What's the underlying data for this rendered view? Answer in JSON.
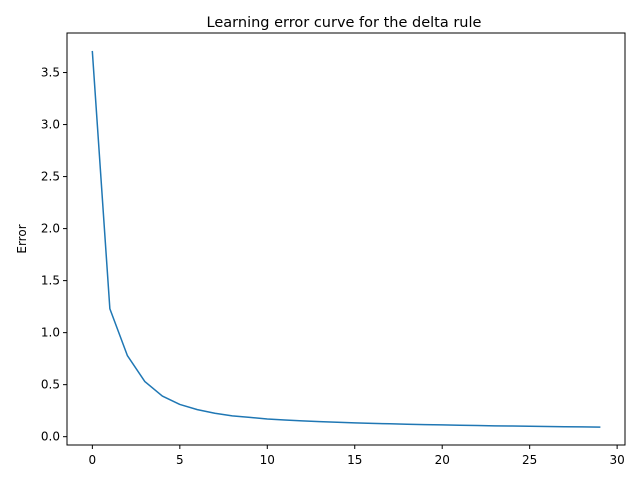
{
  "chart_data": {
    "type": "line",
    "title": "Learning error curve for the delta rule",
    "xlabel": "",
    "ylabel": "Error",
    "xlim": [
      -1.45,
      30.45
    ],
    "ylim": [
      -0.08,
      3.88
    ],
    "xticks": [
      0,
      5,
      10,
      15,
      20,
      25,
      30
    ],
    "yticks": [
      0.0,
      0.5,
      1.0,
      1.5,
      2.0,
      2.5,
      3.0,
      3.5
    ],
    "ytick_labels": [
      "0.0",
      "0.5",
      "1.0",
      "1.5",
      "2.0",
      "2.5",
      "3.0",
      "3.5"
    ],
    "grid": false,
    "line_color": "#1f77b4",
    "series": [
      {
        "x": [
          0,
          1,
          2,
          3,
          4,
          5,
          6,
          7,
          8,
          9,
          10,
          11,
          12,
          13,
          14,
          15,
          16,
          17,
          18,
          19,
          20,
          21,
          22,
          23,
          24,
          25,
          26,
          27,
          28,
          29
        ],
        "values": [
          3.7,
          1.23,
          0.78,
          0.53,
          0.39,
          0.31,
          0.26,
          0.225,
          0.2,
          0.185,
          0.17,
          0.16,
          0.152,
          0.145,
          0.139,
          0.133,
          0.128,
          0.124,
          0.12,
          0.116,
          0.113,
          0.11,
          0.107,
          0.104,
          0.102,
          0.1,
          0.098,
          0.096,
          0.094,
          0.092
        ]
      }
    ]
  }
}
